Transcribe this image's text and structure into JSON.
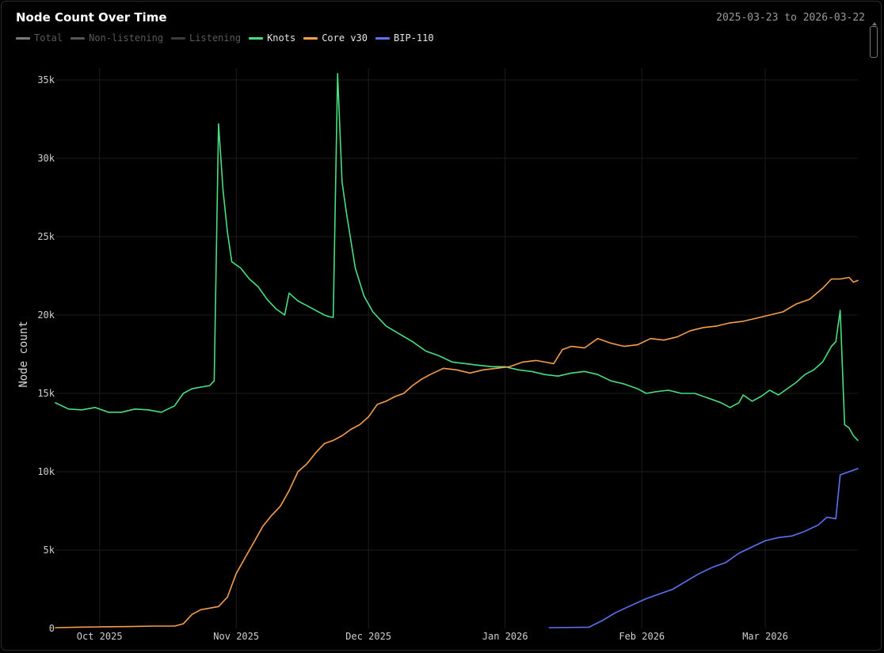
{
  "header": {
    "title": "Node Count Over Time",
    "date_range": "2025-03-23 to 2026-03-22"
  },
  "legend": [
    {
      "label": "Total",
      "color": "#7a7a7a",
      "dimmed": true
    },
    {
      "label": "Non-listening",
      "color": "#555555",
      "dimmed": true
    },
    {
      "label": "Listening",
      "color": "#3c3c3c",
      "dimmed": true
    },
    {
      "label": "Knots",
      "color": "#4ade80",
      "dimmed": false
    },
    {
      "label": "Core v30",
      "color": "#f59e4c",
      "dimmed": false
    },
    {
      "label": "BIP-110",
      "color": "#5b72f2",
      "dimmed": false
    }
  ],
  "chart_data": {
    "type": "line",
    "title": "Node Count Over Time",
    "ylabel": "Node count",
    "xlabel": "",
    "xlim": [
      "2025-09-21",
      "2026-03-22"
    ],
    "ylim": [
      0,
      35000
    ],
    "grid": true,
    "yticks": [
      {
        "value": 0,
        "label": "0"
      },
      {
        "value": 5000,
        "label": "5k"
      },
      {
        "value": 10000,
        "label": "10k"
      },
      {
        "value": 15000,
        "label": "15k"
      },
      {
        "value": 20000,
        "label": "20k"
      },
      {
        "value": 25000,
        "label": "25k"
      },
      {
        "value": 30000,
        "label": "30k"
      },
      {
        "value": 35000,
        "label": "35k"
      }
    ],
    "xticks": [
      {
        "date": "2025-10-01",
        "label": "Oct 2025"
      },
      {
        "date": "2025-11-01",
        "label": "Nov 2025"
      },
      {
        "date": "2025-12-01",
        "label": "Dec 2025"
      },
      {
        "date": "2026-01-01",
        "label": "Jan 2026"
      },
      {
        "date": "2026-02-01",
        "label": "Feb 2026"
      },
      {
        "date": "2026-03-01",
        "label": "Mar 2026"
      }
    ],
    "series": [
      {
        "name": "Knots",
        "color": "#4ade80",
        "points": [
          [
            "2025-09-21",
            14400
          ],
          [
            "2025-09-24",
            14000
          ],
          [
            "2025-09-27",
            13950
          ],
          [
            "2025-09-30",
            14100
          ],
          [
            "2025-10-03",
            13800
          ],
          [
            "2025-10-06",
            13800
          ],
          [
            "2025-10-09",
            14000
          ],
          [
            "2025-10-12",
            13950
          ],
          [
            "2025-10-15",
            13800
          ],
          [
            "2025-10-18",
            14200
          ],
          [
            "2025-10-20",
            15000
          ],
          [
            "2025-10-22",
            15300
          ],
          [
            "2025-10-24",
            15400
          ],
          [
            "2025-10-26",
            15500
          ],
          [
            "2025-10-27",
            15800
          ],
          [
            "2025-10-28",
            32200
          ],
          [
            "2025-10-29",
            28000
          ],
          [
            "2025-10-30",
            25300
          ],
          [
            "2025-10-31",
            23400
          ],
          [
            "2025-11-02",
            23000
          ],
          [
            "2025-11-04",
            22300
          ],
          [
            "2025-11-06",
            21800
          ],
          [
            "2025-11-08",
            21000
          ],
          [
            "2025-11-10",
            20400
          ],
          [
            "2025-11-12",
            20000
          ],
          [
            "2025-11-13",
            21400
          ],
          [
            "2025-11-15",
            20900
          ],
          [
            "2025-11-17",
            20600
          ],
          [
            "2025-11-19",
            20300
          ],
          [
            "2025-11-21",
            20000
          ],
          [
            "2025-11-22",
            19900
          ],
          [
            "2025-11-23",
            19850
          ],
          [
            "2025-11-24",
            35400
          ],
          [
            "2025-11-25",
            28500
          ],
          [
            "2025-11-26",
            26500
          ],
          [
            "2025-11-28",
            23000
          ],
          [
            "2025-11-30",
            21200
          ],
          [
            "2025-12-02",
            20200
          ],
          [
            "2025-12-05",
            19300
          ],
          [
            "2025-12-08",
            18800
          ],
          [
            "2025-12-11",
            18300
          ],
          [
            "2025-12-14",
            17700
          ],
          [
            "2025-12-17",
            17400
          ],
          [
            "2025-12-20",
            17000
          ],
          [
            "2025-12-23",
            16900
          ],
          [
            "2025-12-26",
            16800
          ],
          [
            "2025-12-29",
            16700
          ],
          [
            "2026-01-01",
            16700
          ],
          [
            "2026-01-04",
            16500
          ],
          [
            "2026-01-07",
            16400
          ],
          [
            "2026-01-10",
            16200
          ],
          [
            "2026-01-13",
            16100
          ],
          [
            "2026-01-16",
            16300
          ],
          [
            "2026-01-19",
            16400
          ],
          [
            "2026-01-22",
            16200
          ],
          [
            "2026-01-25",
            15800
          ],
          [
            "2026-01-28",
            15600
          ],
          [
            "2026-01-31",
            15300
          ],
          [
            "2026-02-02",
            15000
          ],
          [
            "2026-02-04",
            15100
          ],
          [
            "2026-02-07",
            15200
          ],
          [
            "2026-02-10",
            15000
          ],
          [
            "2026-02-13",
            15000
          ],
          [
            "2026-02-16",
            14700
          ],
          [
            "2026-02-19",
            14400
          ],
          [
            "2026-02-21",
            14100
          ],
          [
            "2026-02-23",
            14400
          ],
          [
            "2026-02-24",
            14900
          ],
          [
            "2026-02-26",
            14500
          ],
          [
            "2026-02-28",
            14800
          ],
          [
            "2026-03-02",
            15200
          ],
          [
            "2026-03-04",
            14900
          ],
          [
            "2026-03-06",
            15300
          ],
          [
            "2026-03-08",
            15700
          ],
          [
            "2026-03-10",
            16200
          ],
          [
            "2026-03-12",
            16500
          ],
          [
            "2026-03-14",
            17000
          ],
          [
            "2026-03-16",
            18000
          ],
          [
            "2026-03-17",
            18300
          ],
          [
            "2026-03-18",
            20300
          ],
          [
            "2026-03-19",
            13000
          ],
          [
            "2026-03-20",
            12800
          ],
          [
            "2026-03-21",
            12300
          ],
          [
            "2026-03-22",
            12000
          ]
        ]
      },
      {
        "name": "Core v30",
        "color": "#f59e4c",
        "points": [
          [
            "2025-09-21",
            50
          ],
          [
            "2025-09-26",
            80
          ],
          [
            "2025-10-01",
            100
          ],
          [
            "2025-10-08",
            120
          ],
          [
            "2025-10-13",
            150
          ],
          [
            "2025-10-18",
            150
          ],
          [
            "2025-10-20",
            300
          ],
          [
            "2025-10-22",
            900
          ],
          [
            "2025-10-24",
            1200
          ],
          [
            "2025-10-26",
            1300
          ],
          [
            "2025-10-28",
            1400
          ],
          [
            "2025-10-30",
            2000
          ],
          [
            "2025-11-01",
            3500
          ],
          [
            "2025-11-03",
            4500
          ],
          [
            "2025-11-05",
            5500
          ],
          [
            "2025-11-07",
            6500
          ],
          [
            "2025-11-09",
            7200
          ],
          [
            "2025-11-11",
            7800
          ],
          [
            "2025-11-13",
            8800
          ],
          [
            "2025-11-15",
            10000
          ],
          [
            "2025-11-17",
            10500
          ],
          [
            "2025-11-19",
            11200
          ],
          [
            "2025-11-21",
            11800
          ],
          [
            "2025-11-23",
            12000
          ],
          [
            "2025-11-25",
            12300
          ],
          [
            "2025-11-27",
            12700
          ],
          [
            "2025-11-29",
            13000
          ],
          [
            "2025-12-01",
            13500
          ],
          [
            "2025-12-03",
            14300
          ],
          [
            "2025-12-05",
            14500
          ],
          [
            "2025-12-07",
            14800
          ],
          [
            "2025-12-09",
            15000
          ],
          [
            "2025-12-11",
            15500
          ],
          [
            "2025-12-13",
            15900
          ],
          [
            "2025-12-15",
            16200
          ],
          [
            "2025-12-18",
            16600
          ],
          [
            "2025-12-21",
            16500
          ],
          [
            "2025-12-24",
            16300
          ],
          [
            "2025-12-27",
            16500
          ],
          [
            "2025-12-30",
            16600
          ],
          [
            "2026-01-02",
            16700
          ],
          [
            "2026-01-05",
            17000
          ],
          [
            "2026-01-08",
            17100
          ],
          [
            "2026-01-10",
            17000
          ],
          [
            "2026-01-12",
            16900
          ],
          [
            "2026-01-14",
            17800
          ],
          [
            "2026-01-16",
            18000
          ],
          [
            "2026-01-19",
            17900
          ],
          [
            "2026-01-22",
            18500
          ],
          [
            "2026-01-25",
            18200
          ],
          [
            "2026-01-28",
            18000
          ],
          [
            "2026-01-31",
            18100
          ],
          [
            "2026-02-03",
            18500
          ],
          [
            "2026-02-06",
            18400
          ],
          [
            "2026-02-09",
            18600
          ],
          [
            "2026-02-12",
            19000
          ],
          [
            "2026-02-15",
            19200
          ],
          [
            "2026-02-18",
            19300
          ],
          [
            "2026-02-21",
            19500
          ],
          [
            "2026-02-24",
            19600
          ],
          [
            "2026-02-27",
            19800
          ],
          [
            "2026-03-02",
            20000
          ],
          [
            "2026-03-05",
            20200
          ],
          [
            "2026-03-08",
            20700
          ],
          [
            "2026-03-11",
            21000
          ],
          [
            "2026-03-14",
            21700
          ],
          [
            "2026-03-16",
            22300
          ],
          [
            "2026-03-18",
            22300
          ],
          [
            "2026-03-20",
            22400
          ],
          [
            "2026-03-21",
            22100
          ],
          [
            "2026-03-22",
            22200
          ]
        ]
      },
      {
        "name": "BIP-110",
        "color": "#5b72f2",
        "points": [
          [
            "2026-01-11",
            50
          ],
          [
            "2026-01-20",
            80
          ],
          [
            "2026-01-23",
            500
          ],
          [
            "2026-01-26",
            1000
          ],
          [
            "2026-01-29",
            1400
          ],
          [
            "2026-02-02",
            1900
          ],
          [
            "2026-02-05",
            2200
          ],
          [
            "2026-02-08",
            2500
          ],
          [
            "2026-02-11",
            3000
          ],
          [
            "2026-02-14",
            3500
          ],
          [
            "2026-02-17",
            3900
          ],
          [
            "2026-02-20",
            4200
          ],
          [
            "2026-02-23",
            4800
          ],
          [
            "2026-02-26",
            5200
          ],
          [
            "2026-03-01",
            5600
          ],
          [
            "2026-03-04",
            5800
          ],
          [
            "2026-03-07",
            5900
          ],
          [
            "2026-03-10",
            6200
          ],
          [
            "2026-03-13",
            6600
          ],
          [
            "2026-03-15",
            7100
          ],
          [
            "2026-03-17",
            7000
          ],
          [
            "2026-03-18",
            9800
          ],
          [
            "2026-03-20",
            10000
          ],
          [
            "2026-03-22",
            10200
          ]
        ]
      }
    ]
  }
}
